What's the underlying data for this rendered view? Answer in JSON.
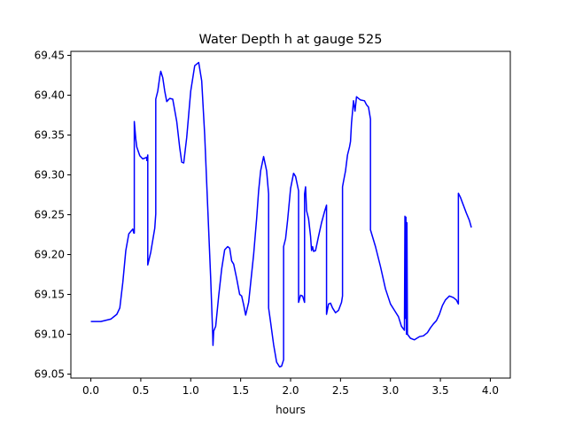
{
  "chart_data": {
    "type": "line",
    "title": "Water Depth h at gauge 525",
    "xlabel": "hours",
    "ylabel": "",
    "xlim": [
      -0.2,
      4.2
    ],
    "ylim": [
      69.045,
      69.455
    ],
    "xticks": [
      0.0,
      0.5,
      1.0,
      1.5,
      2.0,
      2.5,
      3.0,
      3.5,
      4.0
    ],
    "xtick_labels": [
      "0.0",
      "0.5",
      "1.0",
      "1.5",
      "2.0",
      "2.5",
      "3.0",
      "3.5",
      "4.0"
    ],
    "yticks": [
      69.05,
      69.1,
      69.15,
      69.2,
      69.25,
      69.3,
      69.35,
      69.4,
      69.45
    ],
    "ytick_labels": [
      "69.05",
      "69.10",
      "69.15",
      "69.20",
      "69.25",
      "69.30",
      "69.35",
      "69.40",
      "69.45"
    ],
    "grid": false,
    "legend": "none",
    "series": [
      {
        "color": "#0000ff",
        "points": [
          [
            0.0,
            69.116
          ],
          [
            0.1,
            69.116
          ],
          [
            0.2,
            69.119
          ],
          [
            0.26,
            69.125
          ],
          [
            0.29,
            69.133
          ],
          [
            0.32,
            69.165
          ],
          [
            0.35,
            69.205
          ],
          [
            0.38,
            69.226
          ],
          [
            0.42,
            69.232
          ],
          [
            0.43,
            69.227
          ],
          [
            0.435,
            69.227
          ],
          [
            0.435,
            69.367
          ],
          [
            0.45,
            69.345
          ],
          [
            0.46,
            69.335
          ],
          [
            0.49,
            69.324
          ],
          [
            0.52,
            69.32
          ],
          [
            0.56,
            69.322
          ],
          [
            0.56,
            69.318
          ],
          [
            0.57,
            69.325
          ],
          [
            0.57,
            69.187
          ],
          [
            0.6,
            69.203
          ],
          [
            0.64,
            69.233
          ],
          [
            0.65,
            69.251
          ],
          [
            0.65,
            69.395
          ],
          [
            0.67,
            69.405
          ],
          [
            0.69,
            69.423
          ],
          [
            0.7,
            69.43
          ],
          [
            0.72,
            69.422
          ],
          [
            0.74,
            69.405
          ],
          [
            0.76,
            69.392
          ],
          [
            0.79,
            69.396
          ],
          [
            0.82,
            69.395
          ],
          [
            0.86,
            69.367
          ],
          [
            0.89,
            69.334
          ],
          [
            0.91,
            69.316
          ],
          [
            0.93,
            69.315
          ],
          [
            0.96,
            69.347
          ],
          [
            1.0,
            69.405
          ],
          [
            1.04,
            69.437
          ],
          [
            1.08,
            69.441
          ],
          [
            1.11,
            69.418
          ],
          [
            1.14,
            69.35
          ],
          [
            1.17,
            69.26
          ],
          [
            1.2,
            69.17
          ],
          [
            1.22,
            69.1
          ],
          [
            1.223,
            69.086
          ],
          [
            1.23,
            69.104
          ],
          [
            1.25,
            69.11
          ],
          [
            1.28,
            69.148
          ],
          [
            1.31,
            69.182
          ],
          [
            1.34,
            69.206
          ],
          [
            1.37,
            69.21
          ],
          [
            1.39,
            69.208
          ],
          [
            1.41,
            69.192
          ],
          [
            1.43,
            69.188
          ],
          [
            1.46,
            69.17
          ],
          [
            1.49,
            69.15
          ],
          [
            1.51,
            69.148
          ],
          [
            1.53,
            69.137
          ],
          [
            1.55,
            69.124
          ],
          [
            1.58,
            69.14
          ],
          [
            1.63,
            69.2
          ],
          [
            1.66,
            69.245
          ],
          [
            1.68,
            69.28
          ],
          [
            1.7,
            69.305
          ],
          [
            1.73,
            69.323
          ],
          [
            1.76,
            69.305
          ],
          [
            1.78,
            69.276
          ],
          [
            1.78,
            69.133
          ],
          [
            1.8,
            69.115
          ],
          [
            1.83,
            69.087
          ],
          [
            1.86,
            69.065
          ],
          [
            1.89,
            69.059
          ],
          [
            1.91,
            69.06
          ],
          [
            1.93,
            69.068
          ],
          [
            1.93,
            69.21
          ],
          [
            1.95,
            69.22
          ],
          [
            1.97,
            69.243
          ],
          [
            2.0,
            69.283
          ],
          [
            2.03,
            69.302
          ],
          [
            2.05,
            69.298
          ],
          [
            2.08,
            69.28
          ],
          [
            2.08,
            69.14
          ],
          [
            2.1,
            69.149
          ],
          [
            2.12,
            69.148
          ],
          [
            2.14,
            69.14
          ],
          [
            2.14,
            69.276
          ],
          [
            2.15,
            69.285
          ],
          [
            2.16,
            69.255
          ],
          [
            2.18,
            69.245
          ],
          [
            2.2,
            69.223
          ],
          [
            2.21,
            69.205
          ],
          [
            2.22,
            69.21
          ],
          [
            2.23,
            69.204
          ],
          [
            2.25,
            69.205
          ],
          [
            2.28,
            69.223
          ],
          [
            2.31,
            69.24
          ],
          [
            2.34,
            69.254
          ],
          [
            2.36,
            69.262
          ],
          [
            2.36,
            69.125
          ],
          [
            2.38,
            69.138
          ],
          [
            2.4,
            69.139
          ],
          [
            2.42,
            69.133
          ],
          [
            2.45,
            69.127
          ],
          [
            2.48,
            69.13
          ],
          [
            2.51,
            69.14
          ],
          [
            2.52,
            69.148
          ],
          [
            2.52,
            69.285
          ],
          [
            2.53,
            69.292
          ],
          [
            2.55,
            69.305
          ],
          [
            2.57,
            69.325
          ],
          [
            2.59,
            69.335
          ],
          [
            2.6,
            69.342
          ],
          [
            2.61,
            69.365
          ],
          [
            2.63,
            69.393
          ],
          [
            2.645,
            69.38
          ],
          [
            2.66,
            69.398
          ],
          [
            2.7,
            69.394
          ],
          [
            2.74,
            69.393
          ],
          [
            2.76,
            69.388
          ],
          [
            2.78,
            69.385
          ],
          [
            2.8,
            69.37
          ],
          [
            2.8,
            69.231
          ],
          [
            2.85,
            69.21
          ],
          [
            2.9,
            69.185
          ],
          [
            2.95,
            69.157
          ],
          [
            3.0,
            69.138
          ],
          [
            3.04,
            69.13
          ],
          [
            3.08,
            69.122
          ],
          [
            3.11,
            69.11
          ],
          [
            3.14,
            69.105
          ],
          [
            3.145,
            69.248
          ],
          [
            3.15,
            69.12
          ],
          [
            3.155,
            69.247
          ],
          [
            3.16,
            69.1
          ],
          [
            3.165,
            69.24
          ],
          [
            3.17,
            69.1
          ],
          [
            3.2,
            69.095
          ],
          [
            3.24,
            69.093
          ],
          [
            3.29,
            69.097
          ],
          [
            3.33,
            69.098
          ],
          [
            3.37,
            69.102
          ],
          [
            3.4,
            69.108
          ],
          [
            3.43,
            69.113
          ],
          [
            3.46,
            69.117
          ],
          [
            3.49,
            69.125
          ],
          [
            3.52,
            69.136
          ],
          [
            3.55,
            69.143
          ],
          [
            3.59,
            69.148
          ],
          [
            3.63,
            69.146
          ],
          [
            3.66,
            69.143
          ],
          [
            3.68,
            69.138
          ],
          [
            3.68,
            69.277
          ],
          [
            3.7,
            69.272
          ],
          [
            3.73,
            69.262
          ],
          [
            3.76,
            69.252
          ],
          [
            3.79,
            69.243
          ],
          [
            3.81,
            69.234
          ]
        ]
      }
    ]
  }
}
